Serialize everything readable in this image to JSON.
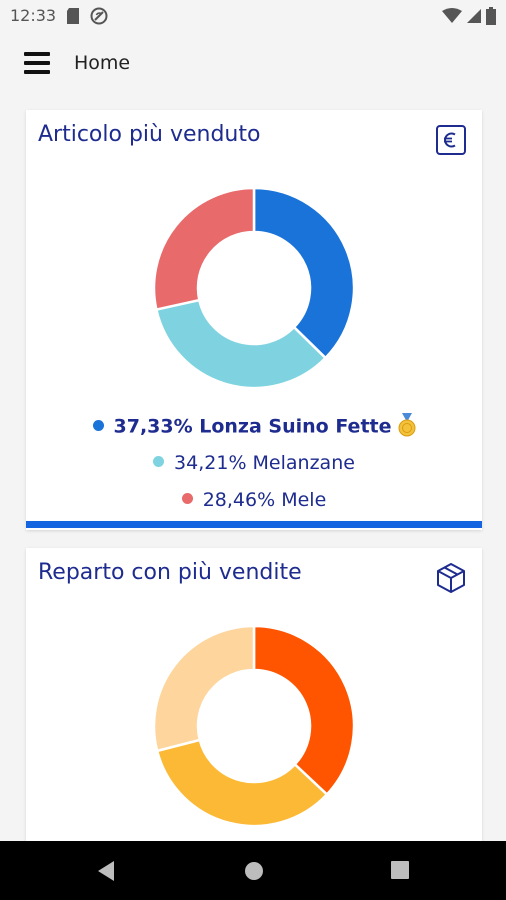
{
  "status_bar": {
    "time": "12:33",
    "left_icons": [
      "sd-card-icon",
      "no-disturb-icon"
    ],
    "right_icons": [
      "wifi-icon",
      "signal-icon",
      "battery-icon"
    ]
  },
  "app_bar": {
    "title": "Home",
    "menu_icon": "hamburger-menu-icon"
  },
  "cards": [
    {
      "title": "Articolo più venduto",
      "icon": "euro-icon",
      "chart_ref": 0,
      "legend": [
        {
          "text": "37,33% Lonza Suino Fette",
          "color": "#1a73d9",
          "highlight": true,
          "badge": "medal-icon"
        },
        {
          "text": "34,21% Melanzane",
          "color": "#7fd3e0"
        },
        {
          "text": "28,46% Mele",
          "color": "#e86a6a"
        }
      ],
      "accent_color": "#1565e0"
    },
    {
      "title": "Reparto con più vendite",
      "icon": "box-icon",
      "chart_ref": 1
    }
  ],
  "chart_data": [
    {
      "type": "pie",
      "donut": true,
      "categories": [
        "Lonza Suino Fette",
        "Melanzane",
        "Mele"
      ],
      "values": [
        37.33,
        34.21,
        28.46
      ],
      "colors": [
        "#1a73d9",
        "#7fd3e0",
        "#e86a6a"
      ]
    },
    {
      "type": "pie",
      "donut": true,
      "values": [
        37,
        34,
        29
      ],
      "colors": [
        "#ff5500",
        "#fbb936",
        "#fed59d"
      ]
    }
  ],
  "nav_bar": {
    "buttons": [
      "back-icon",
      "home-icon",
      "recents-icon"
    ]
  }
}
